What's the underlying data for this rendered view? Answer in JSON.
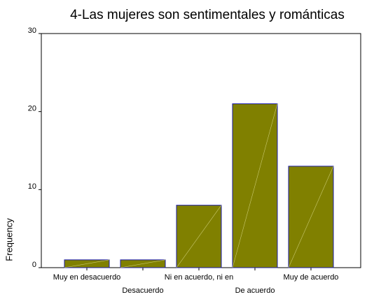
{
  "chart_data": {
    "type": "bar",
    "title": "4-Las mujeres son sentimentales y románticas",
    "y_label": "Frequency",
    "categories": [
      "Muy en desacuerdo",
      "Desacuerdo",
      "Ni en acuerdo, ni en",
      "De acuerdo",
      "Muy de acuerdo"
    ],
    "values": [
      1,
      1,
      8,
      21,
      13
    ],
    "color": "#808000",
    "edge_color": "#1a1aa6",
    "ylim": [
      0,
      30
    ],
    "yticks": [
      0,
      10,
      20,
      30
    ],
    "grid": false
  }
}
